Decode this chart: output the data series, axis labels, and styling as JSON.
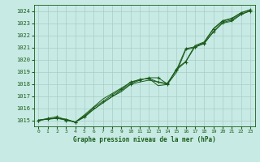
{
  "title": "Graphe pression niveau de la mer (hPa)",
  "bg_color": "#c8eae4",
  "grid_color": "#a8ccc6",
  "line_color": "#1a5c1a",
  "xlim": [
    -0.5,
    23.5
  ],
  "ylim": [
    1014.5,
    1024.5
  ],
  "xticks": [
    0,
    1,
    2,
    3,
    4,
    5,
    6,
    7,
    8,
    9,
    10,
    11,
    12,
    13,
    14,
    15,
    16,
    17,
    18,
    19,
    20,
    21,
    22,
    23
  ],
  "yticks": [
    1015,
    1016,
    1017,
    1018,
    1019,
    1020,
    1021,
    1022,
    1023,
    1024
  ],
  "series1": [
    1015.0,
    1015.1,
    1015.15,
    1015.1,
    1014.85,
    1015.25,
    1015.9,
    1016.45,
    1016.95,
    1017.35,
    1017.95,
    1018.15,
    1018.3,
    1018.15,
    1017.95,
    1018.95,
    1020.8,
    1021.0,
    1021.35,
    1022.25,
    1023.0,
    1023.15,
    1023.7,
    1024.0
  ],
  "series2": [
    1015.0,
    1015.1,
    1015.15,
    1015.05,
    1014.85,
    1015.45,
    1016.1,
    1016.75,
    1017.2,
    1017.65,
    1018.1,
    1018.35,
    1018.45,
    1017.85,
    1017.95,
    1019.25,
    1019.85,
    1021.15,
    1021.45,
    1022.55,
    1023.2,
    1023.4,
    1023.85,
    1024.1
  ],
  "series3_x": [
    0,
    1,
    2,
    3,
    4,
    5,
    6,
    7,
    8,
    9,
    10,
    11,
    12,
    13,
    14,
    15,
    16,
    17,
    18,
    19,
    20,
    21,
    22,
    23
  ],
  "series3": [
    1015.0,
    1015.1,
    1015.2,
    1015.0,
    1014.85,
    1015.3,
    1016.05,
    1016.55,
    1017.1,
    1017.55,
    1018.15,
    1018.35,
    1018.45,
    1018.15,
    1018.05,
    1019.15,
    1020.9,
    1021.05,
    1021.3,
    1022.3,
    1023.05,
    1023.25,
    1023.75,
    1024.0
  ],
  "series4_x": [
    0,
    1,
    2,
    3,
    4,
    10,
    11,
    12,
    13,
    14,
    15,
    16,
    17,
    18,
    19,
    20,
    21,
    22,
    23
  ],
  "series4": [
    1015.0,
    1015.15,
    1015.3,
    1015.05,
    1014.85,
    1018.0,
    1018.3,
    1018.5,
    1018.5,
    1018.0,
    1019.15,
    1019.8,
    1021.05,
    1021.4,
    1022.5,
    1023.15,
    1023.35,
    1023.85,
    1024.1
  ]
}
